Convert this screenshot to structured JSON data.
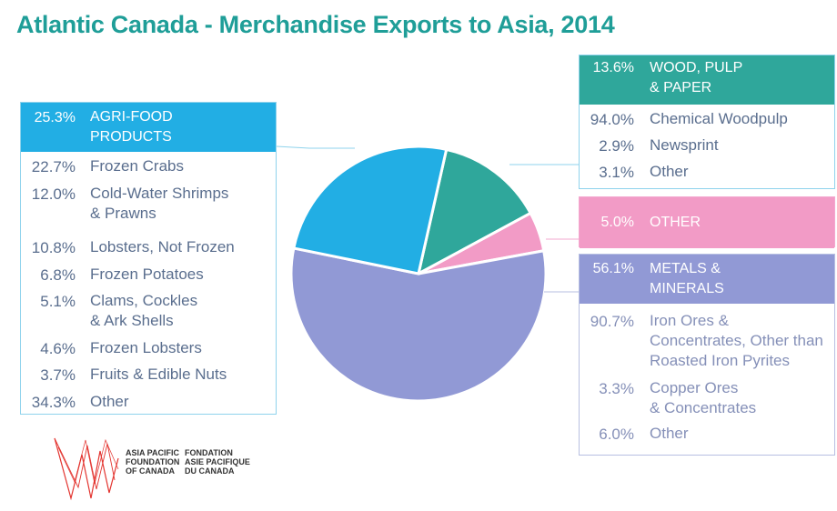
{
  "title": "Atlantic Canada - Merchandise Exports to Asia, 2014",
  "colors": {
    "agri": "#22aee4",
    "wood": "#2fa79b",
    "other": "#f29bc6",
    "metals": "#9199d5",
    "title": "#1f9e98"
  },
  "chart_data": {
    "type": "pie",
    "title": "Atlantic Canada - Merchandise Exports to Asia, 2014",
    "slices": [
      {
        "label": "WOOD, PULP & PAPER",
        "value": 13.6,
        "color": "#2fa79b"
      },
      {
        "label": "OTHER",
        "value": 5.0,
        "color": "#f29bc6"
      },
      {
        "label": "METALS & MINERALS",
        "value": 56.1,
        "color": "#9199d5"
      },
      {
        "label": "AGRI-FOOD PRODUCTS",
        "value": 25.3,
        "color": "#22aee4"
      }
    ],
    "breakdowns": {
      "agri": {
        "header_pct": "25.3%",
        "header_label": [
          "AGRI-FOOD",
          "PRODUCTS"
        ],
        "items": [
          {
            "pct": "22.7%",
            "label": [
              "Frozen Crabs"
            ]
          },
          {
            "pct": "12.0%",
            "label": [
              "Cold-Water Shrimps",
              "& Prawns"
            ]
          },
          {
            "pct": "10.8%",
            "label": [
              "Lobsters, Not Frozen"
            ]
          },
          {
            "pct": "6.8%",
            "label": [
              "Frozen Potatoes"
            ]
          },
          {
            "pct": "5.1%",
            "label": [
              "Clams, Cockles",
              "& Ark Shells"
            ]
          },
          {
            "pct": "4.6%",
            "label": [
              "Frozen Lobsters"
            ]
          },
          {
            "pct": "3.7%",
            "label": [
              "Fruits & Edible Nuts"
            ]
          },
          {
            "pct": "34.3%",
            "label": [
              "Other"
            ]
          }
        ]
      },
      "wood": {
        "header_pct": "13.6%",
        "header_label": [
          "WOOD, PULP",
          "& PAPER"
        ],
        "items": [
          {
            "pct": "94.0%",
            "label": [
              "Chemical Woodpulp"
            ]
          },
          {
            "pct": "2.9%",
            "label": [
              "Newsprint"
            ]
          },
          {
            "pct": "3.1%",
            "label": [
              "Other"
            ]
          }
        ]
      },
      "other": {
        "header_pct": "5.0%",
        "header_label": [
          "OTHER"
        ]
      },
      "metals": {
        "header_pct": "56.1%",
        "header_label": [
          "METALS &",
          "MINERALS"
        ],
        "items": [
          {
            "pct": "90.7%",
            "label": [
              "Iron Ores &",
              "Concentrates, Other than",
              "Roasted Iron Pyrites"
            ]
          },
          {
            "pct": "3.3%",
            "label": [
              "Copper Ores",
              "& Concentrates"
            ]
          },
          {
            "pct": "6.0%",
            "label": [
              "Other"
            ]
          }
        ]
      }
    }
  },
  "logo": {
    "en": [
      "ASIA PACIFIC",
      "FOUNDATION",
      "OF CANADA"
    ],
    "fr": [
      "FONDATION",
      "ASIE PACIFIQUE",
      "DU CANADA"
    ]
  }
}
